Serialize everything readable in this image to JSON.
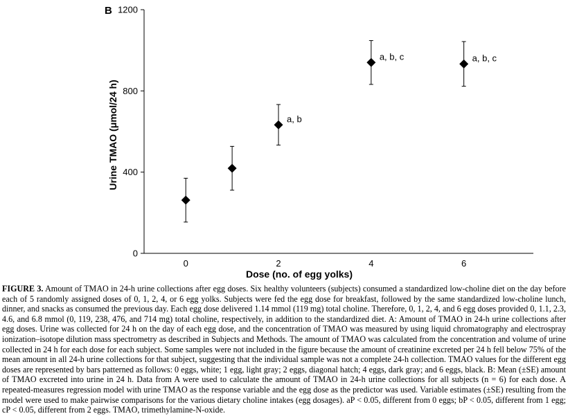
{
  "chart_data": {
    "type": "scatter",
    "panel_label": "B",
    "xlabel": "Dose (no. of egg yolks)",
    "ylabel": "Urine TMAO (μmol/24 h)",
    "x": [
      0,
      1,
      2,
      4,
      6
    ],
    "y": [
      262,
      419,
      633,
      940,
      933
    ],
    "error": [
      108,
      108,
      100,
      108,
      110
    ],
    "annotations": [
      "",
      "",
      "a, b",
      "a, b, c",
      "a, b, c"
    ],
    "xticks": [
      0,
      2,
      4,
      6
    ],
    "xtick_labels": [
      "0",
      "2",
      "4",
      "6"
    ],
    "yticks": [
      0,
      400,
      800,
      1200
    ],
    "ytick_labels": [
      "0",
      "400",
      "800",
      "1200"
    ],
    "xlim": [
      -0.9,
      7.5
    ],
    "ylim": [
      0,
      1200
    ],
    "marker": "diamond",
    "marker_color": "#000000",
    "grid": false,
    "legend": "none"
  },
  "caption": {
    "label": "FIGURE 3.",
    "text": "Amount of TMAO in 24-h urine collections after egg doses. Six healthy volunteers (subjects) consumed a standardized low-choline diet on the day before each of 5 randomly assigned doses of 0, 1, 2, 4, or 6 egg yolks. Subjects were fed the egg dose for breakfast, followed by the same standardized low-choline lunch, dinner, and snacks as consumed the previous day. Each egg dose delivered 1.14 mmol (119 mg) total choline. Therefore, 0, 1, 2, 4, and 6 egg doses provided 0, 1.1, 2.3, 4.6, and 6.8 mmol (0, 119, 238, 476, and 714 mg) total choline, respectively, in addition to the standardized diet. A: Amount of TMAO in 24-h urine collections after egg doses. Urine was collected for 24 h on the day of each egg dose, and the concentration of TMAO was measured by using liquid chromatography and electrospray ionization–isotope dilution mass spectrometry as described in Subjects and Methods. The amount of TMAO was calculated from the concentration and volume of urine collected in 24 h for each dose for each subject. Some samples were not included in the figure because the amount of creatinine excreted per 24 h fell below 75% of the mean amount in all 24-h urine collections for that subject, suggesting that the individual sample was not a complete 24-h collection. TMAO values for the different egg doses are represented by bars patterned as follows: 0 eggs, white; 1 egg, light gray; 2 eggs, diagonal hatch; 4 eggs, dark gray; and 6 eggs, black. B: Mean (±SE) amount of TMAO excreted into urine in 24 h. Data from A were used to calculate the amount of TMAO in 24-h urine collections for all subjects (n = 6) for each dose. A repeated-measures regression model with urine TMAO as the response variable and the egg dose as the predictor was used. Variable estimates (±SE) resulting from the model were used to make pairwise comparisons for the various dietary choline intakes (egg dosages). aP < 0.05, different from 0 eggs; bP < 0.05, different from 1 egg; cP < 0.05, different from 2 eggs. TMAO, trimethylamine-N-oxide."
  }
}
